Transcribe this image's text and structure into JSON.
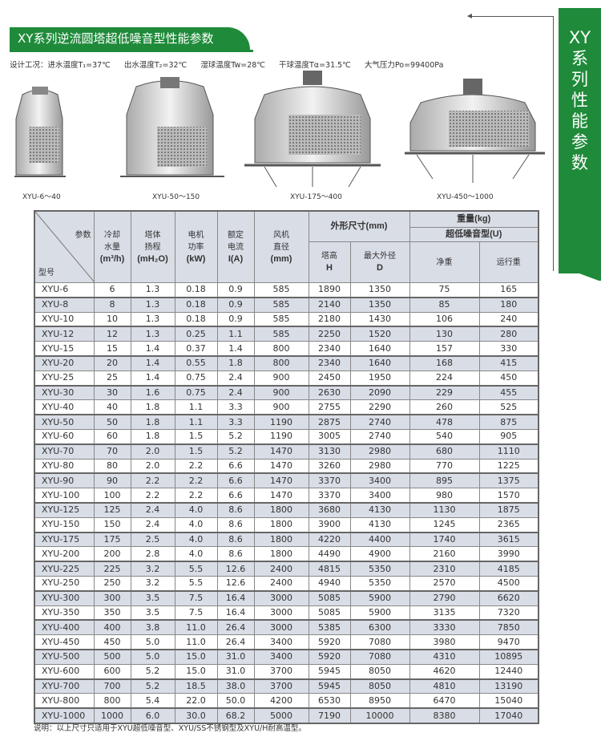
{
  "title": "XY系列逆流圆塔超低噪音型性能参数",
  "conditions": [
    "设计工况：进水温度T₁=37℃",
    "出水温度T₂=32℃",
    "湿球温度Tw=28℃",
    "干球温度Tα=31.5℃",
    "大气压力Po=99400Pa"
  ],
  "side_tab": [
    "XY",
    "系",
    "列",
    "性",
    "能",
    "参",
    "数"
  ],
  "tower_captions": [
    "XYU-6～40",
    "XYU-50～150",
    "XYU-175～400",
    "XYU-450～1000"
  ],
  "header": {
    "param": "参数",
    "model": "型号",
    "flow": [
      "冷却",
      "水量",
      "(m³/h)"
    ],
    "head": [
      "塔体",
      "扬程",
      "(mH₂O)"
    ],
    "power": [
      "电机",
      "功率",
      "(kW)"
    ],
    "current": [
      "额定",
      "电流",
      "I(A)"
    ],
    "fan": [
      "风机",
      "直径",
      "(mm)"
    ],
    "dims": "外形尺寸(mm)",
    "height": [
      "塔高",
      "H"
    ],
    "diameter": [
      "最大外径",
      "D"
    ],
    "weight": "重量(kg)",
    "weight_type": "超低噪音型(U)",
    "net": "净重",
    "operating": "运行重"
  },
  "rows": [
    [
      "XYU-6",
      "6",
      "1.3",
      "0.18",
      "0.9",
      "585",
      "1890",
      "1350",
      "75",
      "165"
    ],
    [
      "XYU-8",
      "8",
      "1.3",
      "0.18",
      "0.9",
      "585",
      "2140",
      "1350",
      "85",
      "180"
    ],
    [
      "XYU-10",
      "10",
      "1.3",
      "0.18",
      "0.9",
      "585",
      "2180",
      "1430",
      "106",
      "240"
    ],
    [
      "XYU-12",
      "12",
      "1.3",
      "0.25",
      "1.1",
      "585",
      "2250",
      "1520",
      "130",
      "280"
    ],
    [
      "XYU-15",
      "15",
      "1.4",
      "0.37",
      "1.4",
      "800",
      "2340",
      "1640",
      "157",
      "330"
    ],
    [
      "XYU-20",
      "20",
      "1.4",
      "0.55",
      "1.8",
      "800",
      "2340",
      "1640",
      "168",
      "415"
    ],
    [
      "XYU-25",
      "25",
      "1.4",
      "0.75",
      "2.4",
      "900",
      "2450",
      "1950",
      "224",
      "450"
    ],
    [
      "XYU-30",
      "30",
      "1.6",
      "0.75",
      "2.4",
      "900",
      "2630",
      "2090",
      "229",
      "455"
    ],
    [
      "XYU-40",
      "40",
      "1.8",
      "1.1",
      "3.3",
      "900",
      "2755",
      "2290",
      "260",
      "525"
    ],
    [
      "XYU-50",
      "50",
      "1.8",
      "1.1",
      "3.3",
      "1190",
      "2875",
      "2740",
      "478",
      "875"
    ],
    [
      "XYU-60",
      "60",
      "1.8",
      "1.5",
      "5.2",
      "1190",
      "3005",
      "2740",
      "540",
      "905"
    ],
    [
      "XYU-70",
      "70",
      "2.0",
      "1.5",
      "5.2",
      "1470",
      "3130",
      "2980",
      "680",
      "1110"
    ],
    [
      "XYU-80",
      "80",
      "2.0",
      "2.2",
      "6.6",
      "1470",
      "3260",
      "2980",
      "770",
      "1225"
    ],
    [
      "XYU-90",
      "90",
      "2.2",
      "2.2",
      "6.6",
      "1470",
      "3370",
      "3400",
      "895",
      "1375"
    ],
    [
      "XYU-100",
      "100",
      "2.2",
      "2.2",
      "6.6",
      "1470",
      "3370",
      "3400",
      "980",
      "1570"
    ],
    [
      "XYU-125",
      "125",
      "2.4",
      "4.0",
      "8.6",
      "1800",
      "3680",
      "4130",
      "1130",
      "1875"
    ],
    [
      "XYU-150",
      "150",
      "2.4",
      "4.0",
      "8.6",
      "1800",
      "3900",
      "4130",
      "1245",
      "2365"
    ],
    [
      "XYU-175",
      "175",
      "2.5",
      "4.0",
      "8.6",
      "1800",
      "4220",
      "4400",
      "1740",
      "3615"
    ],
    [
      "XYU-200",
      "200",
      "2.8",
      "4.0",
      "8.6",
      "1800",
      "4490",
      "4900",
      "2160",
      "3990"
    ],
    [
      "XYU-225",
      "225",
      "3.2",
      "5.5",
      "12.6",
      "2400",
      "4815",
      "5350",
      "2310",
      "4185"
    ],
    [
      "XYU-250",
      "250",
      "3.2",
      "5.5",
      "12.6",
      "2400",
      "4940",
      "5350",
      "2570",
      "4500"
    ],
    [
      "XYU-300",
      "300",
      "3.5",
      "7.5",
      "16.4",
      "3000",
      "5085",
      "5900",
      "2790",
      "6620"
    ],
    [
      "XYU-350",
      "350",
      "3.5",
      "7.5",
      "16.4",
      "3000",
      "5085",
      "5900",
      "3135",
      "7320"
    ],
    [
      "XYU-400",
      "400",
      "3.8",
      "11.0",
      "26.4",
      "3000",
      "5385",
      "6300",
      "3330",
      "7850"
    ],
    [
      "XYU-450",
      "450",
      "5.0",
      "11.0",
      "26.4",
      "3400",
      "5920",
      "7080",
      "3980",
      "9470"
    ],
    [
      "XYU-500",
      "500",
      "5.0",
      "15.0",
      "31.0",
      "3400",
      "5920",
      "7080",
      "4310",
      "10895"
    ],
    [
      "XYU-600",
      "600",
      "5.2",
      "15.0",
      "31.0",
      "3700",
      "5945",
      "8050",
      "4620",
      "12440"
    ],
    [
      "XYU-700",
      "700",
      "5.2",
      "18.5",
      "38.0",
      "3700",
      "5945",
      "8050",
      "4810",
      "13190"
    ],
    [
      "XYU-800",
      "800",
      "5.4",
      "22.0",
      "50.0",
      "4200",
      "6530",
      "8950",
      "6470",
      "15040"
    ],
    [
      "XYU-1000",
      "1000",
      "6.0",
      "30.0",
      "68.2",
      "5000",
      "7190",
      "10000",
      "8380",
      "17040"
    ]
  ],
  "note": "说明：以上尺寸只适用于XYU超低噪音型、XYU/SS不锈钢型及XYU/H耐高温型。",
  "colors": {
    "brand_green": "#1f8b3a",
    "row_shade": "#d9dde6"
  }
}
